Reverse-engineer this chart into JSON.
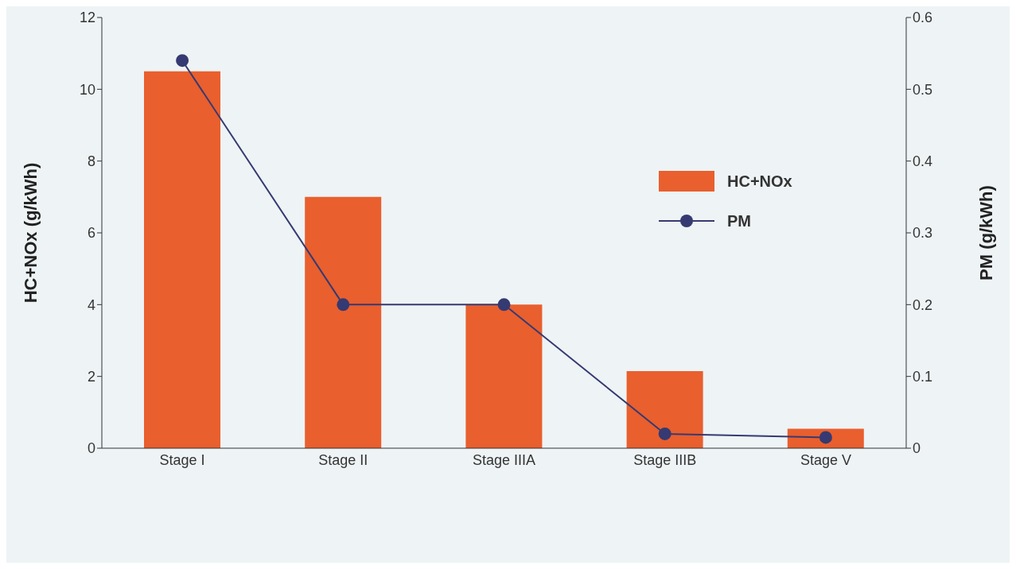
{
  "chart_data": {
    "type": "bar",
    "categories": [
      "Stage I",
      "Stage II",
      "Stage IIIA",
      "Stage IIIB",
      "Stage V"
    ],
    "series": [
      {
        "name": "HC+NOx",
        "color": "#e95f2e",
        "values": [
          10.5,
          7.0,
          4.0,
          2.15,
          0.54
        ]
      },
      {
        "name": "PM",
        "type": "line",
        "axis": "y2",
        "color": "#363a72",
        "values": [
          0.54,
          0.2,
          0.2,
          0.02,
          0.015
        ]
      }
    ],
    "ylabel": "HC+NOx (g/kWh)",
    "y2label": "PM (g/kWh)",
    "ylim": [
      0,
      12
    ],
    "yticks": [
      0,
      2,
      4,
      6,
      8,
      10,
      12
    ],
    "y2lim": [
      0,
      0.6
    ],
    "y2ticks": [
      0,
      0.1,
      0.2,
      0.3,
      0.4,
      0.5,
      0.6
    ],
    "grid": false,
    "legend": "top right",
    "marker": "circle",
    "line_style": "solid"
  }
}
